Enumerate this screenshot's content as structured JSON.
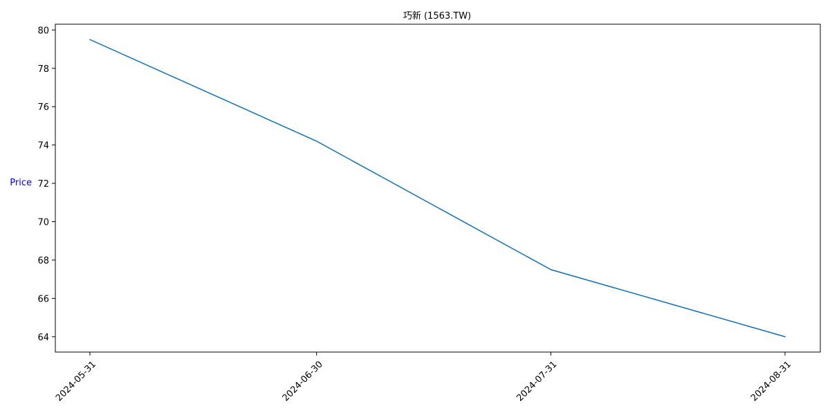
{
  "chart_data": {
    "type": "line",
    "title": "巧新 (1563.TW)",
    "xlabel": "",
    "ylabel": "Price",
    "ylabel_color": "#0000ff",
    "line_color": "#1f77b4",
    "ylim": [
      63.2,
      80.3
    ],
    "yticks": [
      64,
      66,
      68,
      70,
      72,
      74,
      76,
      78,
      80
    ],
    "x": [
      "2024-05-31",
      "2024-06-30",
      "2024-07-31",
      "2024-08-31"
    ],
    "x_days": [
      0,
      30,
      61,
      92
    ],
    "series": [
      {
        "name": "Price",
        "values": [
          79.5,
          74.2,
          67.5,
          64.0
        ]
      }
    ],
    "grid": false,
    "legend": "none"
  }
}
